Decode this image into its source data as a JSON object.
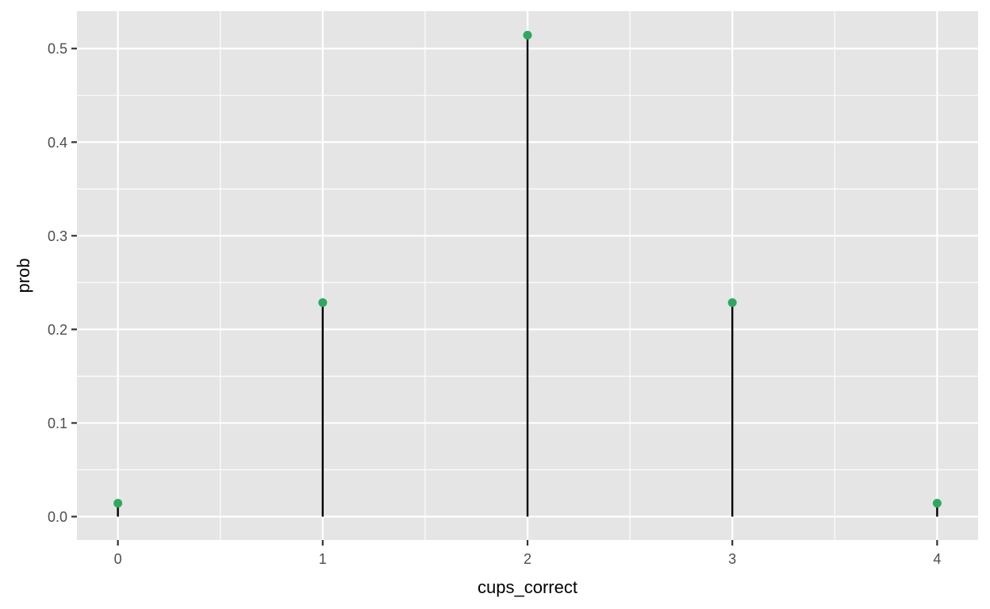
{
  "chart_data": {
    "type": "scatter",
    "geom": "lollipop",
    "x": [
      0,
      1,
      2,
      3,
      4
    ],
    "y": [
      0.0143,
      0.2286,
      0.5143,
      0.2286,
      0.0143
    ],
    "xlabel": "cups_correct",
    "ylabel": "prob",
    "xlim": [
      -0.2,
      4.2
    ],
    "ylim": [
      -0.025,
      0.54
    ],
    "x_ticks": [
      0,
      1,
      2,
      3,
      4
    ],
    "x_tick_labels": [
      "0",
      "1",
      "2",
      "3",
      "4"
    ],
    "y_ticks": [
      0.0,
      0.1,
      0.2,
      0.3,
      0.4,
      0.5
    ],
    "y_tick_labels": [
      "0.0",
      "0.1",
      "0.2",
      "0.3",
      "0.4",
      "0.5"
    ],
    "grid": true,
    "background": "#e5e5e5",
    "point_color": "#2ea860",
    "stem_color": "#000000"
  }
}
